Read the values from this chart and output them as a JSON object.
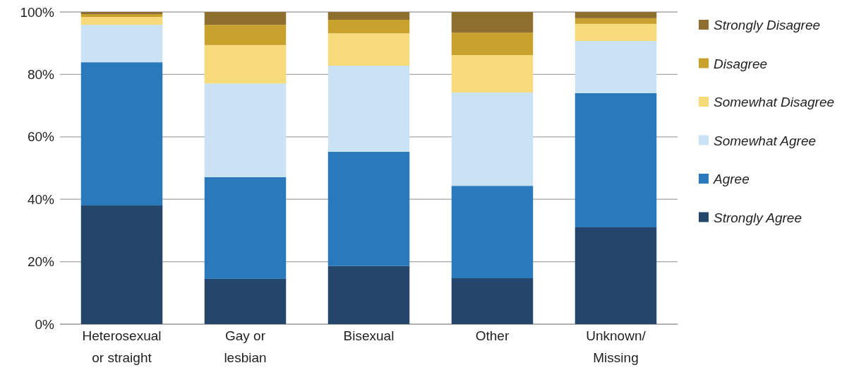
{
  "chart_data": {
    "type": "bar",
    "stacked": true,
    "categories": [
      "Heterosexual or straight",
      "Gay or lesbian",
      "Bisexual",
      "Other",
      "Unknown/ Missing"
    ],
    "series": [
      {
        "name": "Strongly Agree",
        "color": "#23466a",
        "values": [
          38.0,
          14.5,
          18.6,
          14.7,
          31.0
        ]
      },
      {
        "name": "Agree",
        "color": "#2a7abb",
        "values": [
          45.9,
          32.6,
          36.6,
          29.6,
          43.0
        ]
      },
      {
        "name": "Somewhat Agree",
        "color": "#c9e3f5",
        "values": [
          12.0,
          30.0,
          27.6,
          29.9,
          16.7
        ]
      },
      {
        "name": "Somewhat Disagree",
        "color": "#f7db7a",
        "values": [
          2.5,
          12.3,
          10.4,
          12.0,
          5.5
        ]
      },
      {
        "name": "Disagree",
        "color": "#c9a22e",
        "values": [
          0.9,
          6.5,
          4.3,
          7.2,
          1.8
        ]
      },
      {
        "name": "Strongly Disagree",
        "color": "#8e6f2f",
        "values": [
          0.7,
          4.1,
          2.5,
          6.6,
          2.0
        ]
      }
    ],
    "ylim": [
      0,
      100
    ],
    "yticks": [
      {
        "value": 0,
        "label": "0%"
      },
      {
        "value": 20,
        "label": "20%"
      },
      {
        "value": 40,
        "label": "40%"
      },
      {
        "value": 60,
        "label": "60%"
      },
      {
        "value": 80,
        "label": "80%"
      },
      {
        "value": 100,
        "label": "100%"
      }
    ],
    "grid": "y",
    "legend": "right"
  }
}
